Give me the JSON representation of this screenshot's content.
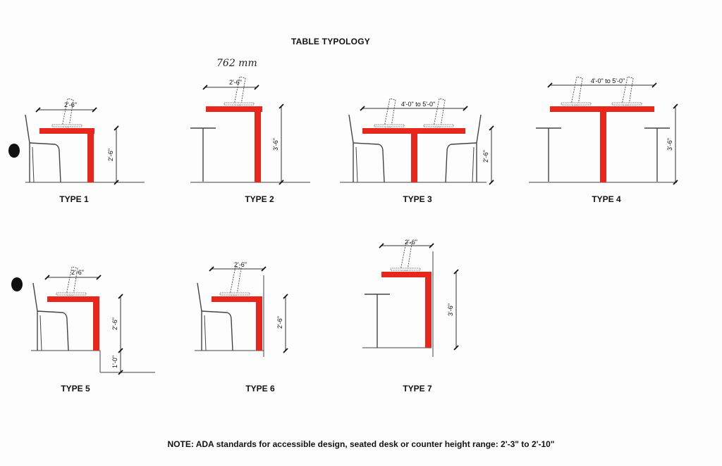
{
  "title": "TABLE TYPOLOGY",
  "note": "NOTE:  ADA standards for accessible design, seated desk or counter height range: 2'-3\" to 2'-10\"",
  "handwritten_note": "762 mm",
  "colors": {
    "table": "#e8261c",
    "line": "#333333"
  },
  "types": [
    {
      "label": "TYPE 1",
      "width_dim": "2'-6\"",
      "height_dim": "2'-6\""
    },
    {
      "label": "TYPE 2",
      "width_dim": "2'-6\"",
      "height_dim": "3'-6\""
    },
    {
      "label": "TYPE 3",
      "width_dim": "4'-0\" to 5'-0\"",
      "height_dim": "2'-6\""
    },
    {
      "label": "TYPE 4",
      "width_dim": "4'-0\" to 5'-0\"",
      "height_dim": "3'-6\""
    },
    {
      "label": "TYPE 5",
      "width_dim": "2'-6\"",
      "height_dim": "2'-6\"",
      "extra_dim": "1'-0\""
    },
    {
      "label": "TYPE 6",
      "width_dim": "2'-6\"",
      "height_dim": "2'-6\""
    },
    {
      "label": "TYPE 7",
      "width_dim": "2'-6\"",
      "height_dim": "3'-6\""
    }
  ]
}
